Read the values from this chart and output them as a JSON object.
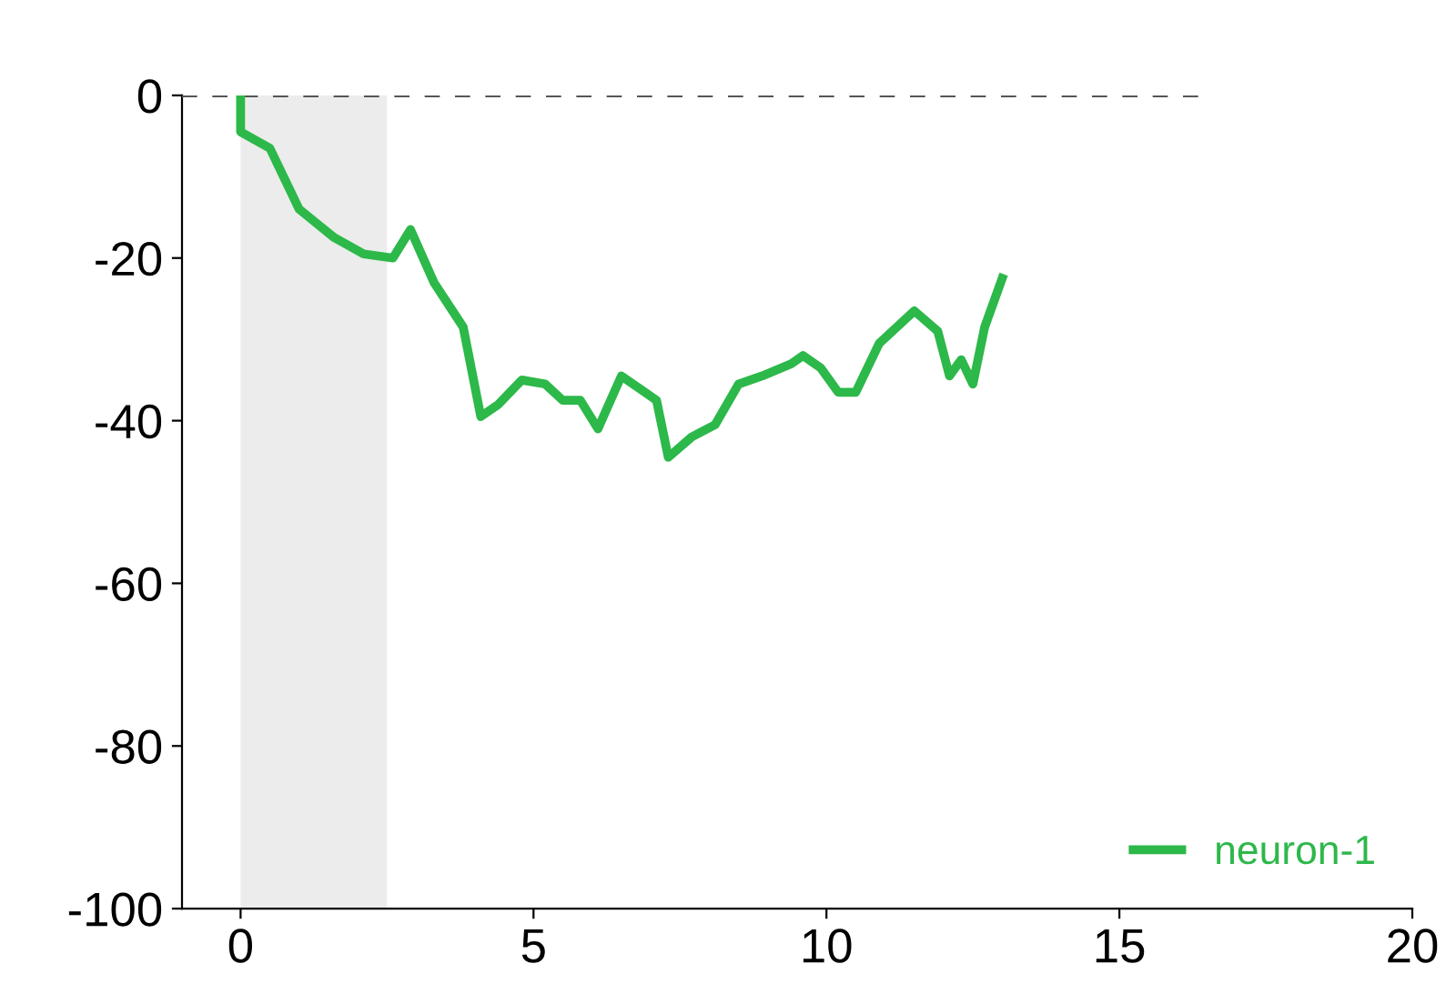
{
  "chart_data": {
    "type": "line",
    "xlim": [
      -1,
      20
    ],
    "ylim": [
      -100,
      0
    ],
    "xticks": [
      0,
      5,
      10,
      15,
      20
    ],
    "yticks": [
      0,
      -20,
      -40,
      -60,
      -80,
      -100
    ],
    "grid": false,
    "legend": "bottom right",
    "bands": [
      {
        "axis": "x",
        "from": 0,
        "to": 2.5,
        "color": "#ececec"
      }
    ],
    "series": [
      {
        "type": "line",
        "color": "#555555",
        "line_style": "dashed",
        "x": [
          -1,
          16.5
        ],
        "values": [
          0,
          0
        ]
      },
      {
        "name": "neuron-1",
        "color": "#2db84a",
        "line_style": "solid",
        "x": [
          0,
          0.0,
          0.5,
          1.0,
          1.6,
          2.1,
          2.6,
          2.9,
          3.3,
          3.8,
          4.1,
          4.4,
          4.8,
          5.2,
          5.5,
          5.8,
          6.1,
          6.5,
          6.9,
          7.1,
          7.3,
          7.7,
          8.1,
          8.5,
          8.9,
          9.4,
          9.6,
          9.9,
          10.2,
          10.5,
          10.9,
          11.5,
          11.9,
          12.1,
          12.3,
          12.5,
          12.7,
          13.0
        ],
        "values": [
          0,
          -4.5,
          -6.5,
          -14,
          -17.5,
          -19.5,
          -20,
          -16.5,
          -23,
          -28.5,
          -39.5,
          -38,
          -35,
          -35.5,
          -37.5,
          -37.5,
          -41,
          -34.5,
          -36.5,
          -37.5,
          -44.5,
          -42,
          -40.5,
          -35.5,
          -34.5,
          -33,
          -32,
          -33.5,
          -36.5,
          -36.5,
          -30.5,
          -26.5,
          -29,
          -34.5,
          -32.5,
          -35.5,
          -28.5,
          -22.5
        ]
      }
    ]
  }
}
